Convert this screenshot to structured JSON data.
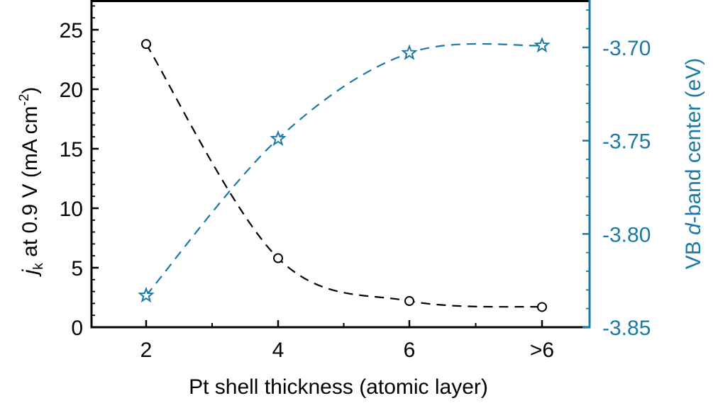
{
  "chart_data": {
    "type": "line",
    "title": "",
    "categories": [
      "2",
      "4",
      "6",
      ">6"
    ],
    "xlabel": "Pt shell thickness (atomic layer)",
    "ylabel": {
      "italic": "j",
      "subscript": "k",
      "main": " at 0.9 V (mA cm",
      "superscript": "-2",
      "end": ")"
    },
    "y2label": {
      "pre": "VB ",
      "italic": "d",
      "post": "-band center (eV)"
    },
    "ylim": [
      0,
      27.5
    ],
    "y_ticks": [
      0,
      5,
      10,
      15,
      20,
      25
    ],
    "y_minor_step": 1,
    "y2lim": [
      -3.85,
      -3.6746
    ],
    "y2_ticks": [
      -3.85,
      -3.8,
      -3.75,
      -3.7
    ],
    "y2_tick_labels": [
      "-3.85",
      "-3.80",
      "-3.75",
      "-3.70"
    ],
    "y2_minor_step": 0.01,
    "grid": false,
    "series": [
      {
        "axis": "left",
        "marker": "circle",
        "color": "#000000",
        "values": [
          23.8,
          5.8,
          2.2,
          1.7
        ]
      },
      {
        "axis": "right",
        "marker": "star",
        "color": "#1a7aa6",
        "values": [
          -3.833,
          -3.749,
          -3.703,
          -3.699
        ]
      }
    ]
  }
}
